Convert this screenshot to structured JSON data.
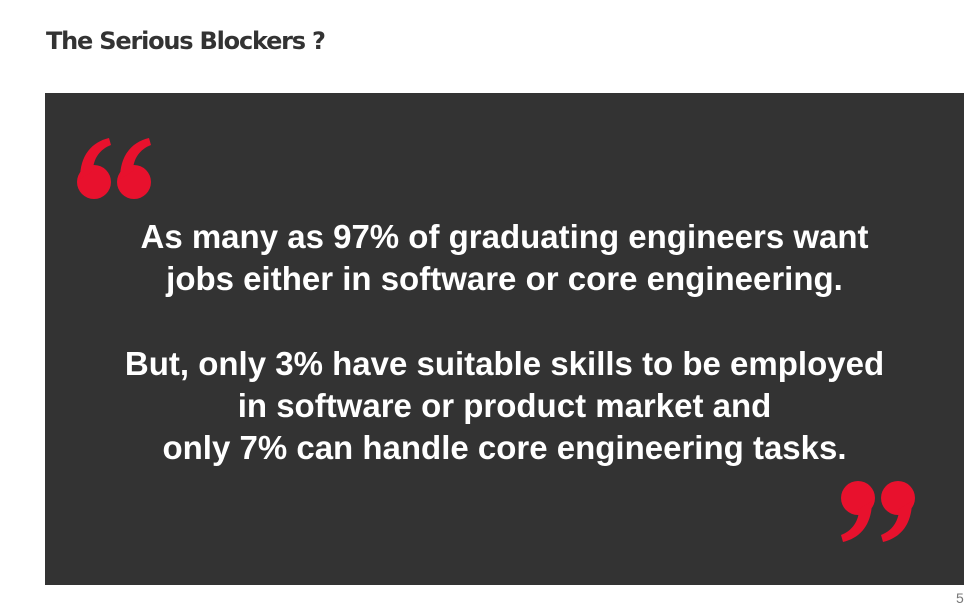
{
  "slide": {
    "title": "The Serious Blockers ?",
    "page_number": "5"
  },
  "quote": {
    "paragraph1": [
      "As many as 97% of graduating engineers want",
      "jobs either in software or core engineering."
    ],
    "paragraph2": [
      "But, only 3% have suitable skills to be employed",
      "in software or product market and",
      "only 7% can handle core engineering tasks."
    ]
  },
  "colors": {
    "panel_background": "#333333",
    "quote_mark": "#e8112d",
    "quote_text": "#ffffff",
    "title_text": "#333333"
  },
  "icons": {
    "open_quote": "open-quote-icon",
    "close_quote": "close-quote-icon"
  }
}
